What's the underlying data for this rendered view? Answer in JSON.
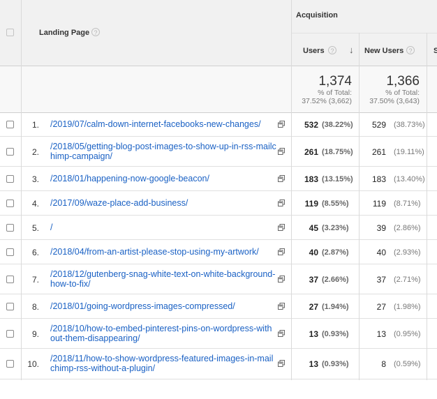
{
  "header": {
    "landing_page": "Landing Page",
    "acquisition": "Acquisition",
    "users": "Users",
    "new_users": "New Users",
    "next_col_initial": "S",
    "help_glyph": "?",
    "sort_glyph": "↓"
  },
  "totals": {
    "users": "1,374",
    "users_pct_label": "% of Total:",
    "users_pct": "37.52% (3,662)",
    "new_users": "1,366",
    "new_users_pct_label": "% of Total:",
    "new_users_pct": "37.50% (3,643)"
  },
  "rows": [
    {
      "num": "1.",
      "page": "/2019/07/calm-down-internet-facebooks-new-changes/",
      "users": "532",
      "users_pct": "(38.22%)",
      "new_users": "529",
      "new_users_pct": "(38.73%)"
    },
    {
      "num": "2.",
      "page": "/2018/05/getting-blog-post-images-to-show-up-in-rss-mailchimp-campaign/",
      "users": "261",
      "users_pct": "(18.75%)",
      "new_users": "261",
      "new_users_pct": "(19.11%)"
    },
    {
      "num": "3.",
      "page": "/2018/01/happening-now-google-beacon/",
      "users": "183",
      "users_pct": "(13.15%)",
      "new_users": "183",
      "new_users_pct": "(13.40%)"
    },
    {
      "num": "4.",
      "page": "/2017/09/waze-place-add-business/",
      "users": "119",
      "users_pct": "(8.55%)",
      "new_users": "119",
      "new_users_pct": "(8.71%)"
    },
    {
      "num": "5.",
      "page": "/",
      "users": "45",
      "users_pct": "(3.23%)",
      "new_users": "39",
      "new_users_pct": "(2.86%)"
    },
    {
      "num": "6.",
      "page": "/2018/04/from-an-artist-please-stop-using-my-artwork/",
      "users": "40",
      "users_pct": "(2.87%)",
      "new_users": "40",
      "new_users_pct": "(2.93%)"
    },
    {
      "num": "7.",
      "page": "/2018/12/gutenberg-snag-white-text-on-white-background-how-to-fix/",
      "users": "37",
      "users_pct": "(2.66%)",
      "new_users": "37",
      "new_users_pct": "(2.71%)"
    },
    {
      "num": "8.",
      "page": "/2018/01/going-wordpress-images-compressed/",
      "users": "27",
      "users_pct": "(1.94%)",
      "new_users": "27",
      "new_users_pct": "(1.98%)"
    },
    {
      "num": "9.",
      "page": "/2018/10/how-to-embed-pinterest-pins-on-wordpress-without-them-disappearing/",
      "users": "13",
      "users_pct": "(0.93%)",
      "new_users": "13",
      "new_users_pct": "(0.95%)"
    },
    {
      "num": "10.",
      "page": "/2018/11/how-to-show-wordpress-featured-images-in-mailchimp-rss-without-a-plugin/",
      "users": "13",
      "users_pct": "(0.93%)",
      "new_users": "8",
      "new_users_pct": "(0.59%)"
    }
  ]
}
